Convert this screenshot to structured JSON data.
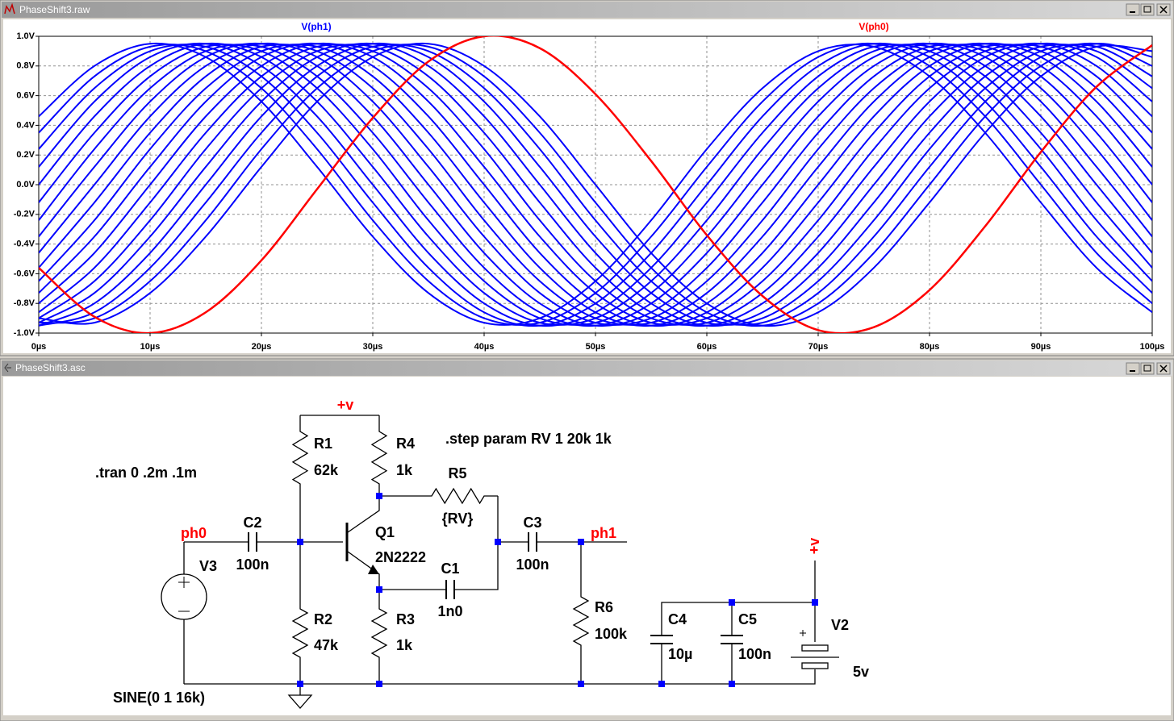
{
  "plot_window": {
    "title": "PhaseShift3.raw"
  },
  "chart_data": {
    "type": "line",
    "x": [
      0,
      5,
      10,
      15,
      20,
      25,
      30,
      35,
      40,
      45,
      50,
      55,
      60,
      65,
      70,
      75,
      80,
      85,
      90,
      95,
      100
    ],
    "xlim": [
      0,
      100
    ],
    "xticks": [
      {
        "value": 0,
        "label": "0µs"
      },
      {
        "value": 10,
        "label": "10µs"
      },
      {
        "value": 20,
        "label": "20µs"
      },
      {
        "value": 30,
        "label": "30µs"
      },
      {
        "value": 40,
        "label": "40µs"
      },
      {
        "value": 50,
        "label": "50µs"
      },
      {
        "value": 60,
        "label": "60µs"
      },
      {
        "value": 70,
        "label": "70µs"
      },
      {
        "value": 80,
        "label": "80µs"
      },
      {
        "value": 90,
        "label": "90µs"
      },
      {
        "value": 100,
        "label": "100µs"
      }
    ],
    "ylim": [
      -1,
      1
    ],
    "yticks": [
      {
        "value": 1,
        "label": "1.0V"
      },
      {
        "value": 0.8,
        "label": "0.8V"
      },
      {
        "value": 0.6,
        "label": "0.6V"
      },
      {
        "value": 0.4,
        "label": "0.4V"
      },
      {
        "value": 0.2,
        "label": "0.2V"
      },
      {
        "value": 0,
        "label": "0.0V"
      },
      {
        "value": -0.2,
        "label": "-0.2V"
      },
      {
        "value": -0.4,
        "label": "-0.4V"
      },
      {
        "value": -0.6,
        "label": "-0.6V"
      },
      {
        "value": -0.8,
        "label": "-0.8V"
      },
      {
        "value": -1,
        "label": "-1.0V"
      }
    ],
    "grid": true,
    "series": [
      {
        "name": "V(ph1)",
        "color": "#0000ff",
        "values": [
          [
            0.46,
            0.8,
            0.95,
            0.86,
            0.56,
            0.12,
            -0.35,
            -0.73,
            -0.93,
            -0.9,
            -0.65,
            -0.24,
            0.24,
            0.65,
            0.9,
            0.93,
            0.73,
            0.35,
            -0.12,
            -0.56,
            -0.86
          ],
          [
            0.35,
            0.73,
            0.93,
            0.9,
            0.65,
            0.24,
            -0.24,
            -0.65,
            -0.9,
            -0.93,
            -0.73,
            -0.35,
            0.12,
            0.56,
            0.86,
            0.95,
            0.8,
            0.46,
            0,
            -0.46,
            -0.8
          ],
          [
            0.24,
            0.65,
            0.9,
            0.93,
            0.73,
            0.35,
            -0.12,
            -0.56,
            -0.86,
            -0.95,
            -0.8,
            -0.46,
            0,
            0.46,
            0.8,
            0.95,
            0.86,
            0.56,
            0.12,
            -0.35,
            -0.73
          ],
          [
            0.12,
            0.56,
            0.86,
            0.95,
            0.8,
            0.46,
            0,
            -0.46,
            -0.8,
            -0.95,
            -0.86,
            -0.56,
            -0.12,
            0.35,
            0.73,
            0.93,
            0.9,
            0.65,
            0.24,
            -0.24,
            -0.65
          ],
          [
            0,
            0.46,
            0.8,
            0.95,
            0.86,
            0.56,
            0.12,
            -0.35,
            -0.73,
            -0.93,
            -0.9,
            -0.65,
            -0.24,
            0.24,
            0.65,
            0.9,
            0.93,
            0.73,
            0.35,
            -0.12,
            -0.56
          ],
          [
            -0.12,
            0.35,
            0.73,
            0.93,
            0.9,
            0.65,
            0.24,
            -0.24,
            -0.65,
            -0.9,
            -0.93,
            -0.73,
            -0.35,
            0.12,
            0.56,
            0.86,
            0.95,
            0.8,
            0.46,
            0,
            -0.46
          ],
          [
            -0.24,
            0.24,
            0.65,
            0.9,
            0.93,
            0.73,
            0.35,
            -0.12,
            -0.56,
            -0.86,
            -0.95,
            -0.8,
            -0.46,
            0,
            0.46,
            0.8,
            0.95,
            0.86,
            0.56,
            0.12,
            -0.35
          ],
          [
            -0.35,
            0.12,
            0.56,
            0.86,
            0.95,
            0.8,
            0.46,
            0,
            -0.46,
            -0.8,
            -0.95,
            -0.86,
            -0.56,
            -0.12,
            0.35,
            0.73,
            0.93,
            0.9,
            0.65,
            0.24,
            -0.24
          ],
          [
            -0.46,
            0,
            0.46,
            0.8,
            0.95,
            0.86,
            0.56,
            0.12,
            -0.35,
            -0.73,
            -0.93,
            -0.9,
            -0.65,
            -0.24,
            0.24,
            0.65,
            0.9,
            0.93,
            0.73,
            0.35,
            -0.12
          ],
          [
            -0.56,
            -0.12,
            0.35,
            0.73,
            0.93,
            0.9,
            0.65,
            0.24,
            -0.24,
            -0.65,
            -0.9,
            -0.93,
            -0.73,
            -0.35,
            0.12,
            0.56,
            0.86,
            0.95,
            0.8,
            0.46,
            0
          ],
          [
            -0.65,
            -0.24,
            0.24,
            0.65,
            0.9,
            0.93,
            0.73,
            0.35,
            -0.12,
            -0.56,
            -0.86,
            -0.95,
            -0.8,
            -0.46,
            0,
            0.46,
            0.8,
            0.95,
            0.86,
            0.56,
            0.12
          ],
          [
            -0.73,
            -0.35,
            0.12,
            0.56,
            0.86,
            0.95,
            0.8,
            0.46,
            0,
            -0.46,
            -0.8,
            -0.95,
            -0.86,
            -0.56,
            -0.12,
            0.35,
            0.73,
            0.93,
            0.9,
            0.65,
            0.24
          ],
          [
            -0.8,
            -0.46,
            0,
            0.46,
            0.8,
            0.95,
            0.86,
            0.56,
            0.12,
            -0.35,
            -0.73,
            -0.93,
            -0.9,
            -0.65,
            -0.24,
            0.24,
            0.65,
            0.9,
            0.93,
            0.73,
            0.35
          ],
          [
            -0.86,
            -0.56,
            -0.12,
            0.35,
            0.73,
            0.93,
            0.9,
            0.65,
            0.24,
            -0.24,
            -0.65,
            -0.9,
            -0.93,
            -0.73,
            -0.35,
            0.12,
            0.56,
            0.86,
            0.95,
            0.8,
            0.46
          ],
          [
            -0.9,
            -0.65,
            -0.24,
            0.24,
            0.65,
            0.9,
            0.93,
            0.73,
            0.35,
            -0.12,
            -0.56,
            -0.86,
            -0.95,
            -0.8,
            -0.46,
            0,
            0.46,
            0.8,
            0.95,
            0.86,
            0.56
          ],
          [
            -0.93,
            -0.73,
            -0.35,
            0.12,
            0.56,
            0.86,
            0.95,
            0.8,
            0.46,
            0,
            -0.46,
            -0.8,
            -0.95,
            -0.86,
            -0.56,
            -0.12,
            0.35,
            0.73,
            0.93,
            0.9,
            0.65
          ],
          [
            -0.95,
            -0.8,
            -0.46,
            0,
            0.46,
            0.8,
            0.95,
            0.86,
            0.56,
            0.12,
            -0.35,
            -0.73,
            -0.93,
            -0.9,
            -0.65,
            -0.24,
            0.24,
            0.65,
            0.9,
            0.93,
            0.73
          ],
          [
            -0.95,
            -0.86,
            -0.56,
            -0.12,
            0.35,
            0.73,
            0.93,
            0.9,
            0.65,
            0.24,
            -0.24,
            -0.65,
            -0.9,
            -0.93,
            -0.73,
            -0.35,
            0.12,
            0.56,
            0.86,
            0.95,
            0.8
          ],
          [
            -0.93,
            -0.9,
            -0.65,
            -0.24,
            0.24,
            0.65,
            0.9,
            0.93,
            0.73,
            0.35,
            -0.12,
            -0.56,
            -0.86,
            -0.95,
            -0.8,
            -0.46,
            0,
            0.46,
            0.8,
            0.95,
            0.86
          ],
          [
            -0.9,
            -0.93,
            -0.73,
            -0.35,
            0.12,
            0.56,
            0.86,
            0.95,
            0.8,
            0.46,
            0,
            -0.46,
            -0.8,
            -0.95,
            -0.86,
            -0.56,
            -0.12,
            0.35,
            0.73,
            0.93,
            0.9
          ]
        ]
      },
      {
        "name": "V(ph0)",
        "color": "#ff0000",
        "values": [
          -0.56,
          -0.89,
          -1,
          -0.86,
          -0.51,
          -0.03,
          0.45,
          0.83,
          1,
          0.92,
          0.61,
          0.16,
          -0.34,
          -0.75,
          -0.98,
          -0.96,
          -0.71,
          -0.28,
          0.22,
          0.66,
          0.94
        ]
      }
    ]
  },
  "schematic": {
    "title": "PhaseShift3.asc",
    "directives": [
      ".tran 0 .2m .1m",
      ".step param RV 1 20k 1k"
    ],
    "net_labels": [
      "+v",
      "ph0",
      "ph1",
      "+v"
    ],
    "components": [
      {
        "name": "R1",
        "value": "62k"
      },
      {
        "name": "R2",
        "value": "47k"
      },
      {
        "name": "R3",
        "value": "1k"
      },
      {
        "name": "R4",
        "value": "1k"
      },
      {
        "name": "R5",
        "value": "{RV}"
      },
      {
        "name": "R6",
        "value": "100k"
      },
      {
        "name": "C1",
        "value": "1n0"
      },
      {
        "name": "C2",
        "value": "100n"
      },
      {
        "name": "C3",
        "value": "100n"
      },
      {
        "name": "C4",
        "value": "10µ"
      },
      {
        "name": "C5",
        "value": "100n"
      },
      {
        "name": "Q1",
        "value": "2N2222"
      },
      {
        "name": "V2",
        "value": "5v"
      },
      {
        "name": "V3",
        "value": "SINE(0 1 16k)"
      }
    ]
  }
}
